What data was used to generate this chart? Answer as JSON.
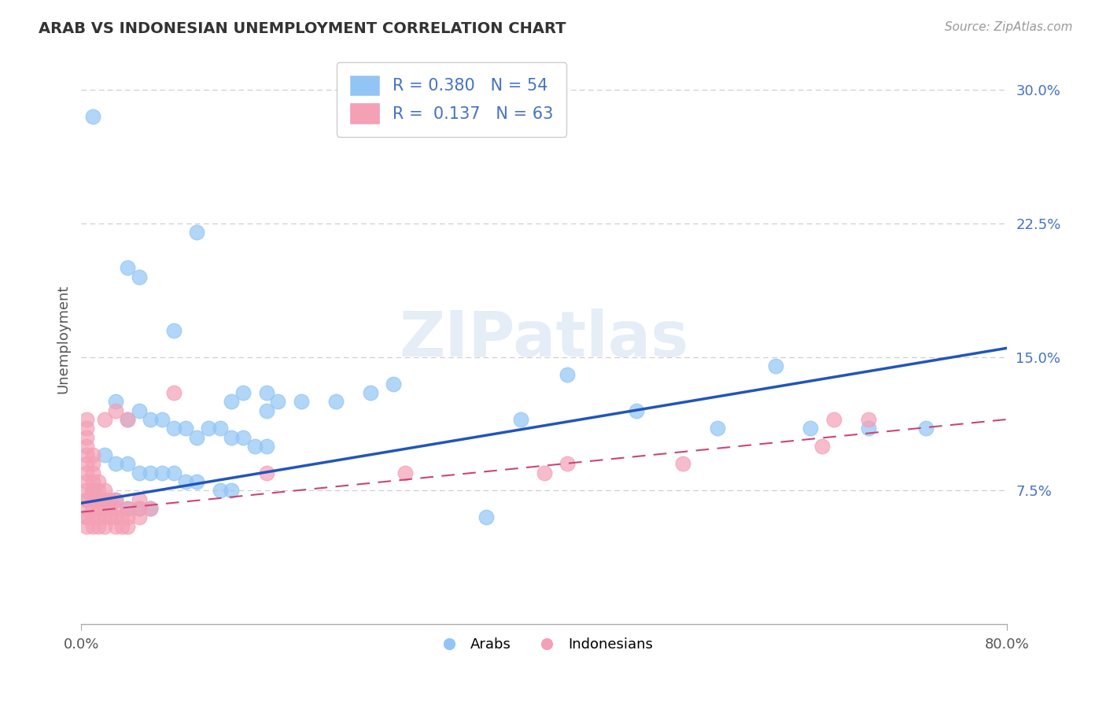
{
  "title": "ARAB VS INDONESIAN UNEMPLOYMENT CORRELATION CHART",
  "source": "Source: ZipAtlas.com",
  "ylabel": "Unemployment",
  "xlim": [
    0.0,
    0.8
  ],
  "ylim": [
    0.0,
    0.32
  ],
  "xticks": [
    0.0,
    0.8
  ],
  "xticklabels": [
    "0.0%",
    "80.0%"
  ],
  "yticks": [
    0.075,
    0.15,
    0.225,
    0.3
  ],
  "yticklabels": [
    "7.5%",
    "15.0%",
    "22.5%",
    "30.0%"
  ],
  "grid_color": "#cccccc",
  "background_color": "#ffffff",
  "arab_color": "#92c5f5",
  "indonesian_color": "#f4a0b5",
  "arab_R": 0.38,
  "arab_N": 54,
  "indonesian_R": 0.137,
  "indonesian_N": 63,
  "legend_color": "#4472c4",
  "watermark_text": "ZIPatlas",
  "arab_line_color": "#2255bb",
  "indonesian_line_color": "#cc4477",
  "arab_line": [
    0.0,
    0.8,
    0.068,
    0.155
  ],
  "indonesian_line": [
    0.0,
    0.8,
    0.063,
    0.115
  ],
  "arab_scatter": [
    [
      0.01,
      0.285
    ],
    [
      0.04,
      0.2
    ],
    [
      0.05,
      0.195
    ],
    [
      0.08,
      0.165
    ],
    [
      0.1,
      0.22
    ],
    [
      0.13,
      0.125
    ],
    [
      0.14,
      0.13
    ],
    [
      0.16,
      0.13
    ],
    [
      0.16,
      0.12
    ],
    [
      0.17,
      0.125
    ],
    [
      0.19,
      0.125
    ],
    [
      0.22,
      0.125
    ],
    [
      0.25,
      0.13
    ],
    [
      0.27,
      0.135
    ],
    [
      0.03,
      0.125
    ],
    [
      0.04,
      0.115
    ],
    [
      0.05,
      0.12
    ],
    [
      0.06,
      0.115
    ],
    [
      0.07,
      0.115
    ],
    [
      0.08,
      0.11
    ],
    [
      0.09,
      0.11
    ],
    [
      0.1,
      0.105
    ],
    [
      0.11,
      0.11
    ],
    [
      0.12,
      0.11
    ],
    [
      0.13,
      0.105
    ],
    [
      0.14,
      0.105
    ],
    [
      0.15,
      0.1
    ],
    [
      0.16,
      0.1
    ],
    [
      0.02,
      0.095
    ],
    [
      0.03,
      0.09
    ],
    [
      0.04,
      0.09
    ],
    [
      0.05,
      0.085
    ],
    [
      0.06,
      0.085
    ],
    [
      0.07,
      0.085
    ],
    [
      0.08,
      0.085
    ],
    [
      0.09,
      0.08
    ],
    [
      0.1,
      0.08
    ],
    [
      0.12,
      0.075
    ],
    [
      0.13,
      0.075
    ],
    [
      0.01,
      0.075
    ],
    [
      0.02,
      0.07
    ],
    [
      0.03,
      0.07
    ],
    [
      0.04,
      0.065
    ],
    [
      0.05,
      0.065
    ],
    [
      0.06,
      0.065
    ],
    [
      0.38,
      0.115
    ],
    [
      0.42,
      0.14
    ],
    [
      0.48,
      0.12
    ],
    [
      0.55,
      0.11
    ],
    [
      0.6,
      0.145
    ],
    [
      0.63,
      0.11
    ],
    [
      0.68,
      0.11
    ],
    [
      0.73,
      0.11
    ],
    [
      0.35,
      0.06
    ]
  ],
  "indonesian_scatter": [
    [
      0.005,
      0.055
    ],
    [
      0.005,
      0.06
    ],
    [
      0.005,
      0.065
    ],
    [
      0.005,
      0.07
    ],
    [
      0.005,
      0.075
    ],
    [
      0.005,
      0.08
    ],
    [
      0.005,
      0.085
    ],
    [
      0.005,
      0.09
    ],
    [
      0.005,
      0.095
    ],
    [
      0.005,
      0.1
    ],
    [
      0.005,
      0.105
    ],
    [
      0.005,
      0.11
    ],
    [
      0.005,
      0.115
    ],
    [
      0.005,
      0.06
    ],
    [
      0.005,
      0.07
    ],
    [
      0.01,
      0.055
    ],
    [
      0.01,
      0.06
    ],
    [
      0.01,
      0.065
    ],
    [
      0.01,
      0.07
    ],
    [
      0.01,
      0.075
    ],
    [
      0.01,
      0.08
    ],
    [
      0.01,
      0.085
    ],
    [
      0.01,
      0.09
    ],
    [
      0.01,
      0.095
    ],
    [
      0.015,
      0.055
    ],
    [
      0.015,
      0.06
    ],
    [
      0.015,
      0.065
    ],
    [
      0.015,
      0.07
    ],
    [
      0.015,
      0.075
    ],
    [
      0.015,
      0.08
    ],
    [
      0.02,
      0.055
    ],
    [
      0.02,
      0.06
    ],
    [
      0.02,
      0.065
    ],
    [
      0.02,
      0.07
    ],
    [
      0.02,
      0.075
    ],
    [
      0.025,
      0.06
    ],
    [
      0.025,
      0.065
    ],
    [
      0.025,
      0.07
    ],
    [
      0.03,
      0.055
    ],
    [
      0.03,
      0.06
    ],
    [
      0.03,
      0.065
    ],
    [
      0.03,
      0.07
    ],
    [
      0.035,
      0.055
    ],
    [
      0.035,
      0.06
    ],
    [
      0.04,
      0.055
    ],
    [
      0.04,
      0.06
    ],
    [
      0.04,
      0.065
    ],
    [
      0.05,
      0.06
    ],
    [
      0.05,
      0.065
    ],
    [
      0.05,
      0.07
    ],
    [
      0.06,
      0.065
    ],
    [
      0.02,
      0.115
    ],
    [
      0.03,
      0.12
    ],
    [
      0.04,
      0.115
    ],
    [
      0.08,
      0.13
    ],
    [
      0.16,
      0.085
    ],
    [
      0.28,
      0.085
    ],
    [
      0.4,
      0.085
    ],
    [
      0.42,
      0.09
    ],
    [
      0.52,
      0.09
    ],
    [
      0.64,
      0.1
    ],
    [
      0.65,
      0.115
    ],
    [
      0.68,
      0.115
    ]
  ]
}
